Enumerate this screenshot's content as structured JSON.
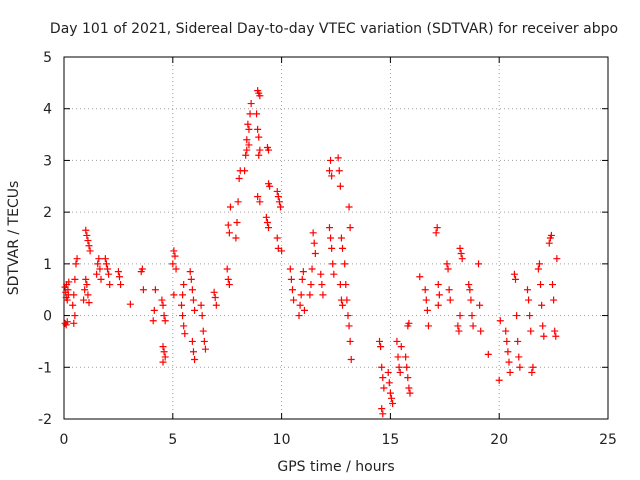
{
  "chart_data": {
    "type": "scatter",
    "title": "Day 101 of 2021, Sidereal Day-to-day VTEC variation (SDTVAR) for receiver abpo",
    "xlabel": "GPS time / hours",
    "ylabel": "SDTVAR / TECUs",
    "xlim": [
      0,
      25
    ],
    "ylim": [
      -2,
      5
    ],
    "xticks": [
      0,
      5,
      10,
      15,
      20,
      25
    ],
    "yticks": [
      -2,
      -1,
      0,
      1,
      2,
      3,
      4,
      5
    ],
    "grid": true,
    "marker": "+",
    "marker_color": "#ff0000",
    "series": [
      {
        "name": "SDTVAR",
        "points": [
          [
            0.05,
            0.55
          ],
          [
            0.08,
            0.45
          ],
          [
            0.1,
            0.35
          ],
          [
            0.12,
            0.6
          ],
          [
            0.15,
            0.3
          ],
          [
            0.18,
            0.5
          ],
          [
            0.2,
            0.4
          ],
          [
            0.22,
            0.65
          ],
          [
            0.05,
            -0.15
          ],
          [
            0.1,
            -0.18
          ],
          [
            0.15,
            -0.12
          ],
          [
            0.4,
            0.2
          ],
          [
            0.45,
            0.4
          ],
          [
            0.5,
            0.7
          ],
          [
            0.55,
            1.0
          ],
          [
            0.6,
            1.1
          ],
          [
            0.5,
            0.0
          ],
          [
            0.45,
            -0.15
          ],
          [
            0.9,
            0.3
          ],
          [
            0.95,
            0.5
          ],
          [
            1.0,
            0.7
          ],
          [
            1.05,
            0.6
          ],
          [
            1.1,
            0.4
          ],
          [
            1.15,
            0.25
          ],
          [
            1.0,
            1.65
          ],
          [
            1.05,
            1.55
          ],
          [
            1.1,
            1.45
          ],
          [
            1.15,
            1.35
          ],
          [
            1.2,
            1.25
          ],
          [
            1.5,
            0.8
          ],
          [
            1.55,
            1.0
          ],
          [
            1.6,
            1.1
          ],
          [
            1.65,
            0.9
          ],
          [
            1.7,
            0.7
          ],
          [
            1.9,
            1.1
          ],
          [
            1.95,
            1.0
          ],
          [
            2.0,
            0.9
          ],
          [
            2.05,
            0.8
          ],
          [
            2.1,
            0.6
          ],
          [
            2.5,
            0.85
          ],
          [
            2.55,
            0.75
          ],
          [
            2.6,
            0.6
          ],
          [
            3.05,
            0.22
          ],
          [
            3.55,
            0.85
          ],
          [
            3.6,
            0.9
          ],
          [
            3.65,
            0.5
          ],
          [
            4.1,
            -0.1
          ],
          [
            4.15,
            0.1
          ],
          [
            4.2,
            0.5
          ],
          [
            4.5,
            0.3
          ],
          [
            4.55,
            0.2
          ],
          [
            4.6,
            0.0
          ],
          [
            4.65,
            -0.1
          ],
          [
            4.55,
            -0.6
          ],
          [
            4.6,
            -0.7
          ],
          [
            4.65,
            -0.8
          ],
          [
            4.55,
            -0.9
          ],
          [
            5.05,
            1.25
          ],
          [
            5.1,
            1.15
          ],
          [
            5.0,
            1.0
          ],
          [
            5.15,
            0.9
          ],
          [
            5.05,
            0.4
          ],
          [
            5.4,
            0.2
          ],
          [
            5.45,
            0.0
          ],
          [
            5.5,
            -0.2
          ],
          [
            5.55,
            -0.35
          ],
          [
            5.45,
            0.4
          ],
          [
            5.5,
            0.6
          ],
          [
            5.8,
            0.85
          ],
          [
            5.85,
            0.7
          ],
          [
            5.9,
            0.5
          ],
          [
            5.95,
            0.3
          ],
          [
            6.0,
            0.1
          ],
          [
            5.9,
            -0.5
          ],
          [
            5.95,
            -0.7
          ],
          [
            6.0,
            -0.85
          ],
          [
            6.3,
            0.2
          ],
          [
            6.35,
            0.0
          ],
          [
            6.4,
            -0.3
          ],
          [
            6.45,
            -0.5
          ],
          [
            6.5,
            -0.65
          ],
          [
            6.9,
            0.45
          ],
          [
            6.95,
            0.35
          ],
          [
            7.0,
            0.2
          ],
          [
            7.5,
            0.9
          ],
          [
            7.55,
            0.7
          ],
          [
            7.6,
            0.6
          ],
          [
            7.55,
            1.75
          ],
          [
            7.6,
            1.6
          ],
          [
            7.65,
            2.1
          ],
          [
            7.9,
            1.5
          ],
          [
            7.95,
            1.8
          ],
          [
            8.0,
            2.2
          ],
          [
            8.05,
            2.65
          ],
          [
            8.1,
            2.8
          ],
          [
            8.3,
            2.8
          ],
          [
            8.35,
            3.1
          ],
          [
            8.4,
            3.4
          ],
          [
            8.45,
            3.7
          ],
          [
            8.5,
            3.6
          ],
          [
            8.55,
            3.9
          ],
          [
            8.6,
            4.1
          ],
          [
            8.4,
            3.2
          ],
          [
            8.5,
            3.3
          ],
          [
            8.9,
            4.35
          ],
          [
            8.95,
            4.3
          ],
          [
            9.0,
            4.25
          ],
          [
            8.85,
            3.9
          ],
          [
            8.9,
            3.6
          ],
          [
            8.95,
            3.45
          ],
          [
            9.0,
            3.2
          ],
          [
            8.95,
            3.1
          ],
          [
            8.9,
            2.3
          ],
          [
            9.0,
            2.2
          ],
          [
            9.35,
            3.25
          ],
          [
            9.4,
            3.2
          ],
          [
            9.3,
            1.9
          ],
          [
            9.35,
            1.8
          ],
          [
            9.4,
            1.7
          ],
          [
            9.4,
            2.55
          ],
          [
            9.45,
            2.5
          ],
          [
            9.8,
            2.4
          ],
          [
            9.85,
            2.3
          ],
          [
            9.9,
            2.2
          ],
          [
            9.95,
            2.1
          ],
          [
            9.8,
            1.5
          ],
          [
            9.85,
            1.3
          ],
          [
            10.0,
            1.25
          ],
          [
            10.4,
            0.9
          ],
          [
            10.45,
            0.7
          ],
          [
            10.5,
            0.5
          ],
          [
            10.55,
            0.3
          ],
          [
            10.8,
            0.0
          ],
          [
            10.85,
            0.2
          ],
          [
            10.9,
            0.4
          ],
          [
            10.95,
            0.7
          ],
          [
            11.0,
            0.85
          ],
          [
            11.05,
            0.1
          ],
          [
            11.3,
            0.4
          ],
          [
            11.35,
            0.6
          ],
          [
            11.4,
            0.9
          ],
          [
            11.45,
            1.6
          ],
          [
            11.5,
            1.4
          ],
          [
            11.55,
            1.2
          ],
          [
            11.8,
            0.8
          ],
          [
            11.85,
            0.6
          ],
          [
            11.9,
            0.4
          ],
          [
            12.2,
            1.7
          ],
          [
            12.25,
            1.5
          ],
          [
            12.3,
            1.3
          ],
          [
            12.35,
            1.0
          ],
          [
            12.4,
            0.8
          ],
          [
            12.2,
            2.8
          ],
          [
            12.25,
            3.0
          ],
          [
            12.3,
            2.7
          ],
          [
            12.6,
            3.05
          ],
          [
            12.65,
            2.8
          ],
          [
            12.7,
            2.5
          ],
          [
            12.75,
            1.5
          ],
          [
            12.8,
            1.3
          ],
          [
            12.7,
            0.6
          ],
          [
            12.75,
            0.3
          ],
          [
            12.8,
            0.2
          ],
          [
            12.9,
            1.0
          ],
          [
            12.95,
            0.6
          ],
          [
            13.0,
            0.3
          ],
          [
            13.05,
            0.0
          ],
          [
            13.1,
            -0.2
          ],
          [
            13.15,
            -0.5
          ],
          [
            13.2,
            -0.85
          ],
          [
            13.1,
            2.1
          ],
          [
            13.15,
            1.7
          ],
          [
            14.5,
            -0.5
          ],
          [
            14.55,
            -0.6
          ],
          [
            14.6,
            -1.0
          ],
          [
            14.65,
            -1.2
          ],
          [
            14.7,
            -1.4
          ],
          [
            14.6,
            -1.8
          ],
          [
            14.65,
            -1.9
          ],
          [
            14.9,
            -1.1
          ],
          [
            14.95,
            -1.3
          ],
          [
            15.0,
            -1.5
          ],
          [
            15.05,
            -1.6
          ],
          [
            15.1,
            -1.7
          ],
          [
            15.3,
            -0.5
          ],
          [
            15.35,
            -0.8
          ],
          [
            15.4,
            -1.0
          ],
          [
            15.45,
            -1.1
          ],
          [
            15.5,
            -0.6
          ],
          [
            15.7,
            -0.8
          ],
          [
            15.75,
            -1.0
          ],
          [
            15.8,
            -1.2
          ],
          [
            15.85,
            -1.4
          ],
          [
            15.9,
            -1.5
          ],
          [
            15.8,
            -0.2
          ],
          [
            15.85,
            -0.15
          ],
          [
            16.35,
            0.75
          ],
          [
            16.6,
            0.5
          ],
          [
            16.65,
            0.3
          ],
          [
            16.7,
            0.1
          ],
          [
            16.75,
            -0.2
          ],
          [
            17.1,
            1.6
          ],
          [
            17.15,
            1.7
          ],
          [
            17.2,
            0.6
          ],
          [
            17.25,
            0.4
          ],
          [
            17.2,
            0.2
          ],
          [
            17.6,
            1.0
          ],
          [
            17.65,
            0.9
          ],
          [
            17.7,
            0.5
          ],
          [
            17.75,
            0.3
          ],
          [
            18.2,
            1.3
          ],
          [
            18.25,
            1.2
          ],
          [
            18.3,
            1.1
          ],
          [
            18.1,
            -0.2
          ],
          [
            18.15,
            -0.3
          ],
          [
            18.2,
            0.0
          ],
          [
            18.6,
            0.6
          ],
          [
            18.65,
            0.5
          ],
          [
            18.7,
            0.3
          ],
          [
            18.75,
            0.0
          ],
          [
            18.8,
            -0.2
          ],
          [
            19.05,
            1.0
          ],
          [
            19.1,
            0.2
          ],
          [
            19.15,
            -0.3
          ],
          [
            19.5,
            -0.75
          ],
          [
            20.0,
            -1.25
          ],
          [
            20.05,
            -0.1
          ],
          [
            20.3,
            -0.3
          ],
          [
            20.35,
            -0.5
          ],
          [
            20.4,
            -0.7
          ],
          [
            20.45,
            -0.9
          ],
          [
            20.5,
            -1.1
          ],
          [
            20.7,
            0.8
          ],
          [
            20.75,
            0.7
          ],
          [
            20.8,
            0.0
          ],
          [
            20.85,
            -0.5
          ],
          [
            20.9,
            -0.8
          ],
          [
            20.95,
            -1.0
          ],
          [
            21.3,
            0.5
          ],
          [
            21.35,
            0.3
          ],
          [
            21.4,
            0.0
          ],
          [
            21.45,
            -0.3
          ],
          [
            21.5,
            -1.1
          ],
          [
            21.55,
            -1.0
          ],
          [
            21.8,
            0.9
          ],
          [
            21.85,
            1.0
          ],
          [
            21.9,
            0.6
          ],
          [
            21.95,
            0.2
          ],
          [
            22.0,
            -0.2
          ],
          [
            22.05,
            -0.4
          ],
          [
            22.3,
            1.4
          ],
          [
            22.35,
            1.5
          ],
          [
            22.4,
            1.55
          ],
          [
            22.45,
            0.6
          ],
          [
            22.5,
            0.3
          ],
          [
            22.55,
            -0.3
          ],
          [
            22.6,
            -0.4
          ],
          [
            22.65,
            1.1
          ]
        ]
      }
    ]
  }
}
